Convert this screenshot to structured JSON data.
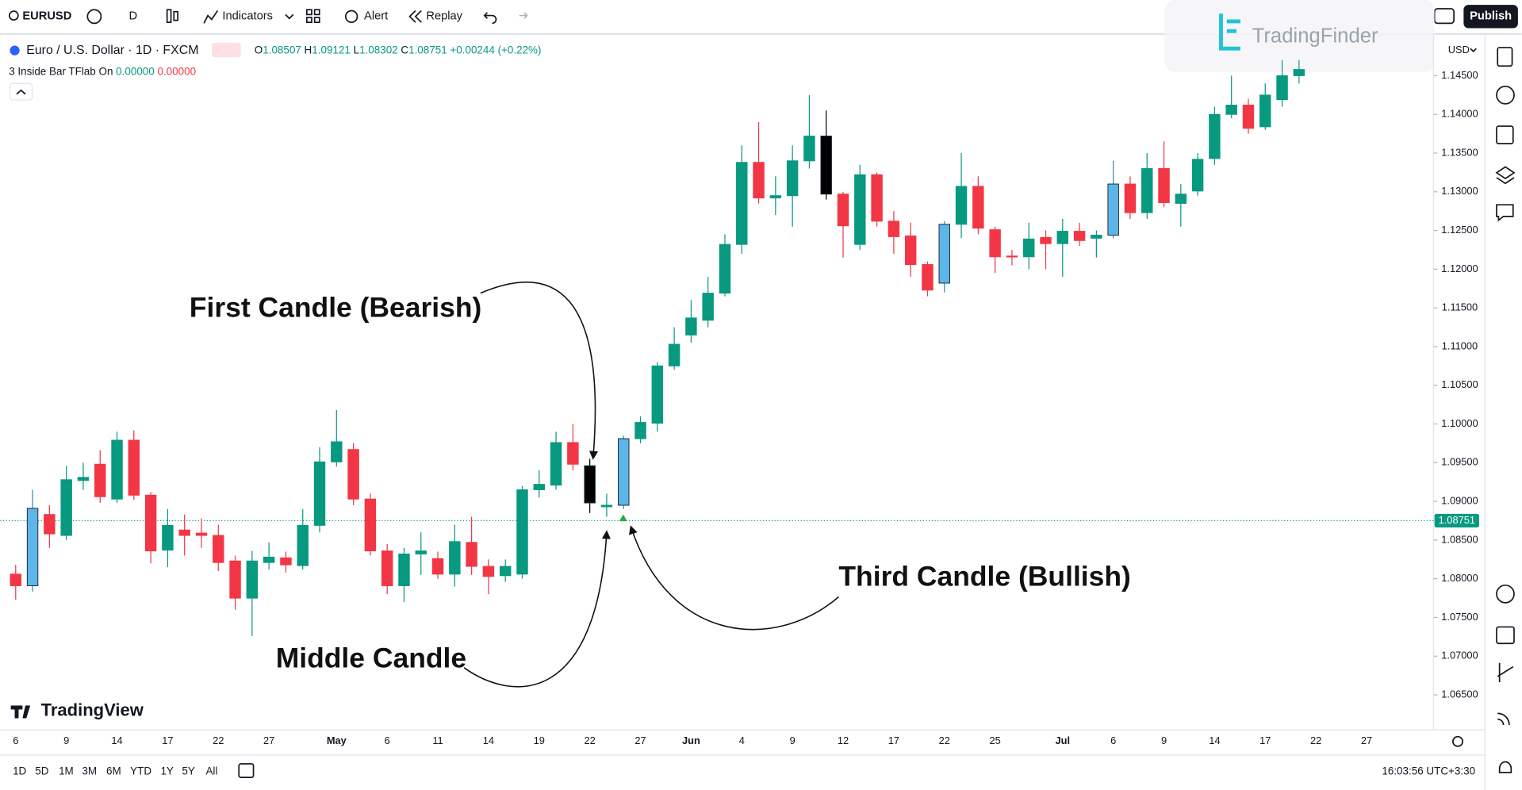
{
  "toolbar": {
    "symbol": "EURUSD",
    "interval": "D",
    "indicators": "Indicators",
    "alert": "Alert",
    "replay": "Replay",
    "publish": "Publish"
  },
  "logo": "TradingFinder",
  "legend": {
    "instrument": "Euro / U.S. Dollar · 1D · FXCM",
    "ohlc": [
      {
        "key": "O",
        "value": "1.08507"
      },
      {
        "key": "H",
        "value": "1.09121"
      },
      {
        "key": "L",
        "value": "1.08302"
      },
      {
        "key": "C",
        "value": "1.08751"
      }
    ],
    "change": "+0.00244",
    "change_pct": "(+0.22%)"
  },
  "indicator": {
    "name": "3 Inside Bar TFlab On",
    "value_1": "0.00000",
    "value_2": "0.00000"
  },
  "currency": "USD",
  "watermark": "TradingView",
  "timeframes": [
    "1D",
    "5D",
    "1M",
    "3M",
    "6M",
    "YTD",
    "1Y",
    "5Y",
    "All"
  ],
  "clock": "16:03:56 UTC+3:30",
  "chart_data": {
    "type": "candlestick",
    "categories": [
      "6",
      null,
      null,
      "9",
      null,
      null,
      "14",
      null,
      null,
      "17",
      null,
      null,
      "22",
      null,
      null,
      "27",
      null,
      null,
      null,
      "May",
      null,
      null,
      "6",
      null,
      null,
      "11",
      null,
      null,
      "14",
      null,
      null,
      "19",
      null,
      null,
      "22",
      null,
      null,
      "27",
      null,
      null,
      "Jun",
      null,
      null,
      "4",
      null,
      null,
      "9",
      null,
      null,
      "12",
      null,
      null,
      "17",
      null,
      null,
      "22",
      null,
      null,
      "25",
      null,
      null,
      null,
      "Jul",
      null,
      null,
      "6",
      null,
      null,
      "9",
      null,
      null,
      "14",
      null,
      null,
      "17",
      null,
      null,
      "22",
      null,
      null,
      "27"
    ],
    "open": [
      1.0806,
      1.0791,
      1.0883,
      1.0856,
      1.0927,
      1.0948,
      1.0903,
      1.0979,
      1.0908,
      1.0837,
      1.0863,
      1.0859,
      1.0856,
      1.0823,
      1.0775,
      1.0821,
      1.0827,
      1.0817,
      1.0869,
      1.0951,
      1.0967,
      1.0903,
      1.0836,
      1.0791,
      1.0832,
      1.0826,
      1.0806,
      1.0847,
      1.0816,
      1.0804,
      1.0806,
      1.0915,
      1.0921,
      1.0976,
      1.0946,
      1.0893,
      1.0895,
      1.0981,
      1.1001,
      1.1075,
      1.1115,
      1.1134,
      1.1169,
      1.1232,
      1.1338,
      1.1292,
      1.1295,
      1.134,
      1.1372,
      1.1297,
      1.1232,
      1.1322,
      1.1262,
      1.1243,
      1.1206,
      1.1182,
      1.1258,
      1.1307,
      1.1251,
      1.1217,
      1.1216,
      1.1241,
      1.1233,
      1.1249,
      1.124,
      1.1244,
      1.131,
      1.1273,
      1.133,
      1.1285,
      1.1301,
      1.1343,
      1.14,
      1.1412,
      1.1384,
      1.1419,
      1.145,
      null,
      null,
      null,
      null
    ],
    "high": [
      1.0818,
      1.0915,
      1.0895,
      1.0946,
      1.095,
      1.0966,
      1.099,
      1.0992,
      1.0912,
      1.089,
      1.0883,
      1.0878,
      1.087,
      1.083,
      1.0836,
      1.0847,
      1.0835,
      1.089,
      1.097,
      1.1018,
      1.0975,
      1.091,
      1.0845,
      1.084,
      1.086,
      1.0835,
      1.087,
      1.088,
      1.0825,
      1.0825,
      1.092,
      1.094,
      1.099,
      1.1,
      1.0955,
      1.091,
      1.0985,
      1.101,
      1.108,
      1.1125,
      1.116,
      1.119,
      1.1245,
      1.136,
      1.139,
      1.132,
      1.136,
      1.1425,
      1.1405,
      1.13,
      1.1335,
      1.1325,
      1.1275,
      1.126,
      1.121,
      1.1262,
      1.135,
      1.132,
      1.1255,
      1.1225,
      1.126,
      1.125,
      1.1265,
      1.126,
      1.125,
      1.134,
      1.132,
      1.135,
      1.1365,
      1.131,
      1.135,
      1.141,
      1.145,
      1.142,
      1.144,
      1.147,
      1.147,
      null,
      null,
      null,
      null
    ],
    "low": [
      1.0773,
      1.0783,
      1.084,
      1.085,
      1.0915,
      1.0898,
      1.0898,
      1.0902,
      1.082,
      1.0815,
      1.083,
      1.084,
      1.081,
      1.076,
      1.0726,
      1.0812,
      1.0808,
      1.0812,
      1.086,
      1.0945,
      1.0895,
      1.083,
      1.078,
      1.077,
      1.0805,
      1.08,
      1.079,
      1.0805,
      1.078,
      1.0796,
      1.08,
      1.0905,
      1.0915,
      1.094,
      1.0885,
      1.088,
      1.089,
      1.0975,
      1.099,
      1.107,
      1.1105,
      1.1125,
      1.1165,
      1.122,
      1.1285,
      1.127,
      1.1255,
      1.133,
      1.129,
      1.1215,
      1.1225,
      1.1255,
      1.122,
      1.119,
      1.1165,
      1.117,
      1.124,
      1.1245,
      1.1195,
      1.1205,
      1.12,
      1.12,
      1.119,
      1.123,
      1.1215,
      1.124,
      1.1265,
      1.1265,
      1.128,
      1.1255,
      1.1295,
      1.1335,
      1.1395,
      1.1375,
      1.138,
      1.141,
      1.144,
      null,
      null,
      null,
      null
    ],
    "close": [
      1.0791,
      1.0891,
      1.0858,
      1.0928,
      1.0931,
      1.0906,
      1.0979,
      1.0908,
      1.0836,
      1.0869,
      1.0856,
      1.0856,
      1.0821,
      1.0775,
      1.0823,
      1.0828,
      1.0818,
      1.0869,
      1.0951,
      1.0977,
      1.0903,
      1.0836,
      1.0791,
      1.0832,
      1.0836,
      1.0806,
      1.0848,
      1.0816,
      1.0803,
      1.0816,
      1.0915,
      1.0922,
      1.0976,
      1.0948,
      1.0898,
      1.0895,
      1.0981,
      1.1002,
      1.1075,
      1.1103,
      1.1137,
      1.1169,
      1.1232,
      1.1338,
      1.1292,
      1.1295,
      1.134,
      1.1372,
      1.1297,
      1.1256,
      1.1322,
      1.1262,
      1.1242,
      1.1206,
      1.1173,
      1.1258,
      1.1307,
      1.1253,
      1.1216,
      1.1216,
      1.1239,
      1.1233,
      1.1249,
      1.1237,
      1.1244,
      1.131,
      1.1273,
      1.133,
      1.1286,
      1.1297,
      1.1342,
      1.14,
      1.1412,
      1.1382,
      1.1425,
      1.145,
      1.1458,
      null,
      null,
      null,
      null
    ],
    "colors": [
      "#f23645",
      "#5db6ea",
      "#f23645",
      "#089981",
      "#089981",
      "#f23645",
      "#089981",
      "#f23645",
      "#f23645",
      "#089981",
      "#f23645",
      "#f23645",
      "#f23645",
      "#f23645",
      "#089981",
      "#089981",
      "#f23645",
      "#089981",
      "#089981",
      "#089981",
      "#f23645",
      "#f23645",
      "#f23645",
      "#089981",
      "#089981",
      "#f23645",
      "#089981",
      "#f23645",
      "#f23645",
      "#089981",
      "#089981",
      "#089981",
      "#089981",
      "#f23645",
      "#000000",
      "#089981",
      "#5db6ea",
      "#089981",
      "#089981",
      "#089981",
      "#089981",
      "#089981",
      "#089981",
      "#089981",
      "#f23645",
      "#089981",
      "#089981",
      "#089981",
      "#000000",
      "#f23645",
      "#089981",
      "#f23645",
      "#f23645",
      "#f23645",
      "#f23645",
      "#5db6ea",
      "#089981",
      "#f23645",
      "#f23645",
      "#f23645",
      "#089981",
      "#f23645",
      "#089981",
      "#f23645",
      "#089981",
      "#5db6ea",
      "#f23645",
      "#089981",
      "#f23645",
      "#089981",
      "#089981",
      "#089981",
      "#089981",
      "#f23645",
      "#089981",
      "#089981",
      "#089981",
      null,
      null,
      null,
      null
    ],
    "ylim": [
      1.06136,
      1.15014
    ],
    "yticks": [
      {
        "value": 1.065,
        "label": "1.06500"
      },
      {
        "value": 1.07,
        "label": "1.07000"
      },
      {
        "value": 1.075,
        "label": "1.07500"
      },
      {
        "value": 1.08,
        "label": "1.08000"
      },
      {
        "value": 1.085,
        "label": "1.08500"
      },
      {
        "value": 1.09,
        "label": "1.09000"
      },
      {
        "value": 1.095,
        "label": "1.09500"
      },
      {
        "value": 1.1,
        "label": "1.10000"
      },
      {
        "value": 1.105,
        "label": "1.10500"
      },
      {
        "value": 1.11,
        "label": "1.11000"
      },
      {
        "value": 1.115,
        "label": "1.11500"
      },
      {
        "value": 1.12,
        "label": "1.12000"
      },
      {
        "value": 1.125,
        "label": "1.12500"
      },
      {
        "value": 1.13,
        "label": "1.13000"
      },
      {
        "value": 1.135,
        "label": "1.13500"
      },
      {
        "value": 1.14,
        "label": "1.14000"
      },
      {
        "value": 1.145,
        "label": "1.14500"
      }
    ],
    "current_price": {
      "value": 1.08751,
      "label": "1.08751"
    },
    "grid": false,
    "annotations": [
      "First Candle (Bearish)",
      "Middle Candle",
      "Third Candle (Bullish)"
    ]
  }
}
